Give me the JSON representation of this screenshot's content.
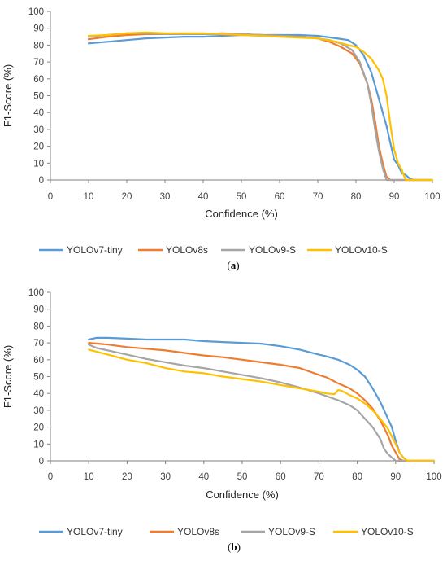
{
  "chart_data": [
    {
      "type": "line",
      "panel_label": {
        "open": "(",
        "letter": "a",
        "close": ")"
      },
      "xlabel": "Confidence (%)",
      "ylabel": "F1-Score (%)",
      "xlim": [
        0,
        100
      ],
      "ylim": [
        0,
        100
      ],
      "xticks": [
        0,
        10,
        20,
        30,
        40,
        50,
        60,
        70,
        80,
        90,
        100
      ],
      "yticks": [
        0,
        10,
        20,
        30,
        40,
        50,
        60,
        70,
        80,
        90,
        100
      ],
      "grid": false,
      "legend": "bottom",
      "series": [
        {
          "name": "YOLOv7-tiny",
          "color": "#5B9BD5",
          "x": [
            10,
            15,
            20,
            25,
            30,
            35,
            40,
            45,
            50,
            55,
            60,
            65,
            70,
            75,
            78,
            80,
            82,
            84,
            86,
            88,
            90,
            91,
            92,
            93,
            94,
            95,
            100
          ],
          "y": [
            81,
            82,
            83,
            84,
            84.5,
            85,
            85,
            85.5,
            86,
            86,
            86,
            86,
            85.5,
            84,
            83,
            80,
            74,
            64,
            48,
            32,
            12,
            9,
            4,
            3,
            1,
            0,
            0
          ]
        },
        {
          "name": "YOLOv8s",
          "color": "#ED7D31",
          "x": [
            10,
            15,
            20,
            25,
            30,
            35,
            40,
            45,
            50,
            55,
            60,
            65,
            70,
            73,
            76,
            79,
            81,
            83,
            84,
            85,
            86,
            87,
            88,
            89,
            100
          ],
          "y": [
            83.5,
            85,
            86,
            86.5,
            86.5,
            86.5,
            86.5,
            87,
            86.5,
            86,
            85.5,
            85,
            84,
            82,
            79,
            75,
            69,
            57,
            48,
            35,
            20,
            10,
            2,
            0,
            0
          ]
        },
        {
          "name": "YOLOv9-S",
          "color": "#A5A5A5",
          "x": [
            10,
            15,
            20,
            25,
            30,
            35,
            40,
            45,
            50,
            55,
            60,
            65,
            70,
            73,
            76,
            79,
            81,
            83,
            84,
            85,
            86,
            87,
            88,
            100
          ],
          "y": [
            85,
            86,
            87,
            87,
            86.5,
            86.5,
            86.5,
            86.5,
            86.5,
            86,
            85.5,
            85,
            84,
            83,
            81,
            77,
            70,
            57,
            45,
            30,
            17,
            7,
            0,
            0
          ]
        },
        {
          "name": "YOLOv10-S",
          "color": "#FFC000",
          "x": [
            10,
            15,
            20,
            25,
            30,
            35,
            40,
            45,
            50,
            55,
            60,
            65,
            70,
            75,
            78,
            80,
            82,
            84,
            86,
            87,
            88,
            89,
            90,
            91,
            92,
            93,
            100
          ],
          "y": [
            85.5,
            86,
            87,
            87.5,
            87,
            87,
            87,
            86.5,
            86,
            85.5,
            85,
            84.5,
            84,
            82,
            80,
            79,
            76,
            72,
            65,
            60,
            50,
            33,
            18,
            10,
            6,
            0,
            0
          ]
        }
      ]
    },
    {
      "type": "line",
      "panel_label": {
        "open": "(",
        "letter": "b",
        "close": ")"
      },
      "xlabel": "Confidence (%)",
      "ylabel": "F1-Score (%)",
      "xlim": [
        0,
        100
      ],
      "ylim": [
        0,
        100
      ],
      "xticks": [
        0,
        10,
        20,
        30,
        40,
        50,
        60,
        70,
        80,
        90,
        100
      ],
      "yticks": [
        0,
        10,
        20,
        30,
        40,
        50,
        60,
        70,
        80,
        90,
        100
      ],
      "grid": false,
      "legend": "bottom",
      "series": [
        {
          "name": "YOLOv7-tiny",
          "color": "#5B9BD5",
          "x": [
            10,
            12,
            15,
            20,
            25,
            30,
            35,
            40,
            45,
            50,
            55,
            60,
            65,
            70,
            72,
            75,
            78,
            80,
            82,
            84,
            86,
            88,
            89,
            90,
            91,
            92,
            93,
            100
          ],
          "y": [
            72,
            73,
            73,
            72.5,
            72,
            72,
            72,
            71,
            70.5,
            70,
            69.5,
            68,
            66,
            63,
            62,
            60,
            57,
            54,
            50,
            43,
            35,
            25,
            20,
            12,
            5,
            2,
            0,
            0
          ]
        },
        {
          "name": "YOLOv8s",
          "color": "#ED7D31",
          "x": [
            10,
            15,
            20,
            25,
            30,
            35,
            40,
            45,
            50,
            55,
            60,
            65,
            70,
            72,
            75,
            78,
            80,
            82,
            84,
            86,
            88,
            89,
            90,
            91,
            92,
            100
          ],
          "y": [
            70,
            69,
            67.5,
            66.5,
            65.5,
            64,
            62.5,
            61.5,
            60,
            58.5,
            57,
            55,
            51,
            49.5,
            46,
            43,
            40,
            36,
            31,
            24,
            15,
            9,
            5,
            1,
            0,
            0
          ]
        },
        {
          "name": "YOLOv9-S",
          "color": "#A5A5A5",
          "x": [
            10,
            12,
            15,
            20,
            25,
            30,
            35,
            40,
            45,
            50,
            55,
            60,
            65,
            70,
            75,
            78,
            80,
            82,
            84,
            86,
            87,
            88,
            89,
            90,
            100
          ],
          "y": [
            69,
            67,
            65.5,
            63,
            60.5,
            58.5,
            56.5,
            55,
            53,
            51,
            49,
            46.5,
            43.5,
            40,
            36,
            33,
            30,
            25,
            20,
            13,
            7,
            4,
            2,
            0,
            0
          ]
        },
        {
          "name": "YOLOv10-S",
          "color": "#FFC000",
          "x": [
            10,
            15,
            20,
            25,
            30,
            35,
            40,
            45,
            50,
            55,
            60,
            65,
            70,
            72,
            74,
            75,
            76,
            78,
            80,
            82,
            84,
            86,
            88,
            90,
            91,
            92,
            93,
            100
          ],
          "y": [
            66,
            63,
            60,
            58,
            55,
            53,
            52,
            50,
            48.5,
            47,
            45,
            43,
            41,
            40,
            39.5,
            42,
            41.5,
            39,
            37,
            34,
            30,
            25,
            19,
            10,
            5,
            2,
            0,
            0
          ]
        }
      ]
    }
  ]
}
